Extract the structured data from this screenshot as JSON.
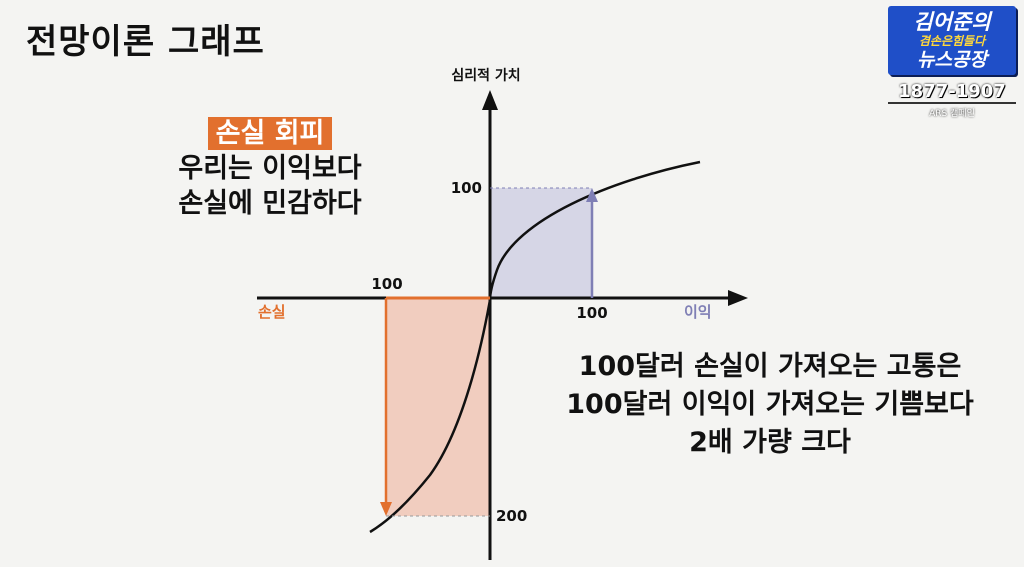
{
  "title": "전망이론 그래프",
  "note": {
    "badge": "손실 회피",
    "line1": "우리는 이익보다",
    "line2": "손실에 민감하다"
  },
  "axes": {
    "y_label": "심리적 가치",
    "x_positive_label": "이익",
    "x_negative_label": "손실",
    "tick_gain_x": "100",
    "tick_loss_x": "100",
    "tick_gain_y": "100",
    "tick_loss_y": "200"
  },
  "conclusion": {
    "line1": "100달러 손실이 가져오는 고통은",
    "line2": "100달러 이익이 가져오는 기쁨보다",
    "line3": "2배 가량 크다"
  },
  "logo": {
    "line1": "김어준의",
    "line2": "겸손은힘들다",
    "line3": "뉴스공장",
    "years": "1877-1907",
    "station": "ARS 캠페인"
  },
  "colors": {
    "loss": "#e2702e",
    "gain": "#7f7fb5",
    "gain_fill": "#d6d6e6",
    "loss_fill": "#f1cdbf"
  }
}
